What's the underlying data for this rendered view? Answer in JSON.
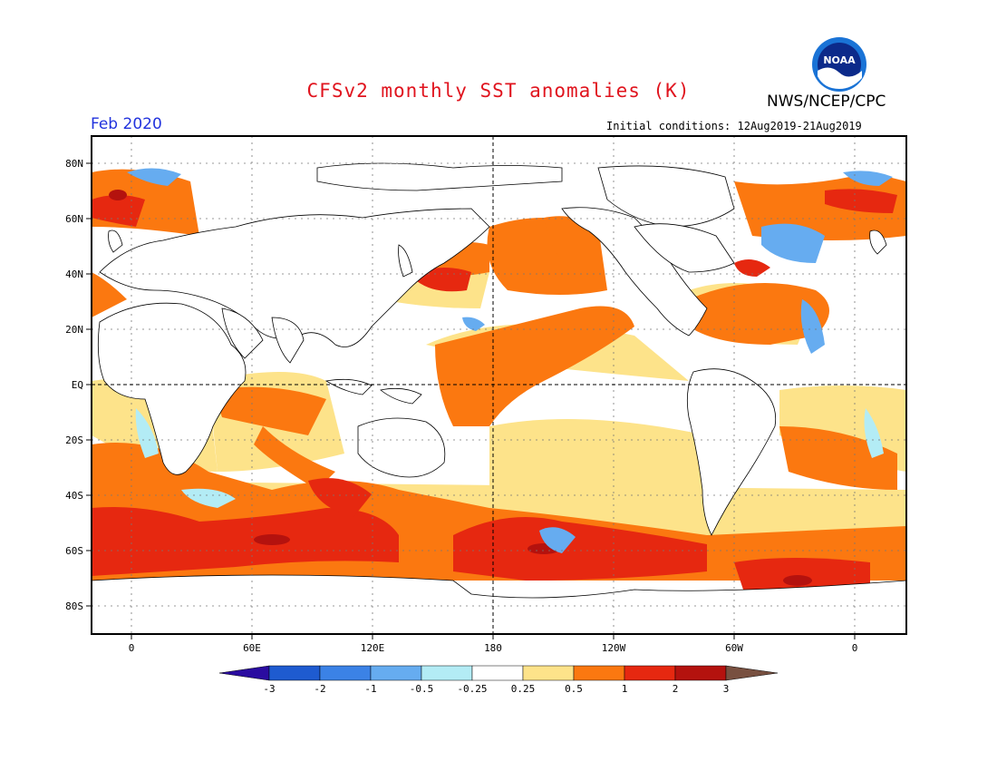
{
  "header": {
    "title": "CFSv2 monthly SST anomalies (K)",
    "agency": "NWS/NCEP/CPC",
    "valid_month": "Feb 2020",
    "initial_conditions": "Initial conditions: 12Aug2019-21Aug2019",
    "logo_text": "NOAA"
  },
  "axes": {
    "lat_labels": [
      "80N",
      "60N",
      "40N",
      "20N",
      "EQ",
      "20S",
      "40S",
      "60S",
      "80S"
    ],
    "lon_labels": [
      "0",
      "60E",
      "120E",
      "180",
      "120W",
      "60W",
      "0"
    ]
  },
  "colorbar": {
    "labels": [
      "-3",
      "-2",
      "-1",
      "-0.5",
      "-0.25",
      "0.25",
      "0.5",
      "1",
      "2",
      "3"
    ],
    "colors": [
      "#2a0ca0",
      "#1e5bd0",
      "#3b82e6",
      "#66acf0",
      "#b3ecf5",
      "#ffffff",
      "#fde38a",
      "#fb7810",
      "#e62810",
      "#b4120e",
      "#785040"
    ]
  },
  "map_regions": [
    {
      "name": "eq-pacific-warm",
      "category": "0.5 to 1",
      "color": "#fb7810"
    },
    {
      "name": "southern-ocean-warm",
      "category": "1 to 2",
      "color": "#e62810"
    },
    {
      "name": "north-atlantic-cool",
      "category": "-1 to -0.5",
      "color": "#66acf0"
    },
    {
      "name": "east-pacific-neutral",
      "category": "-0.25 to 0.25",
      "color": "#ffffff"
    }
  ]
}
